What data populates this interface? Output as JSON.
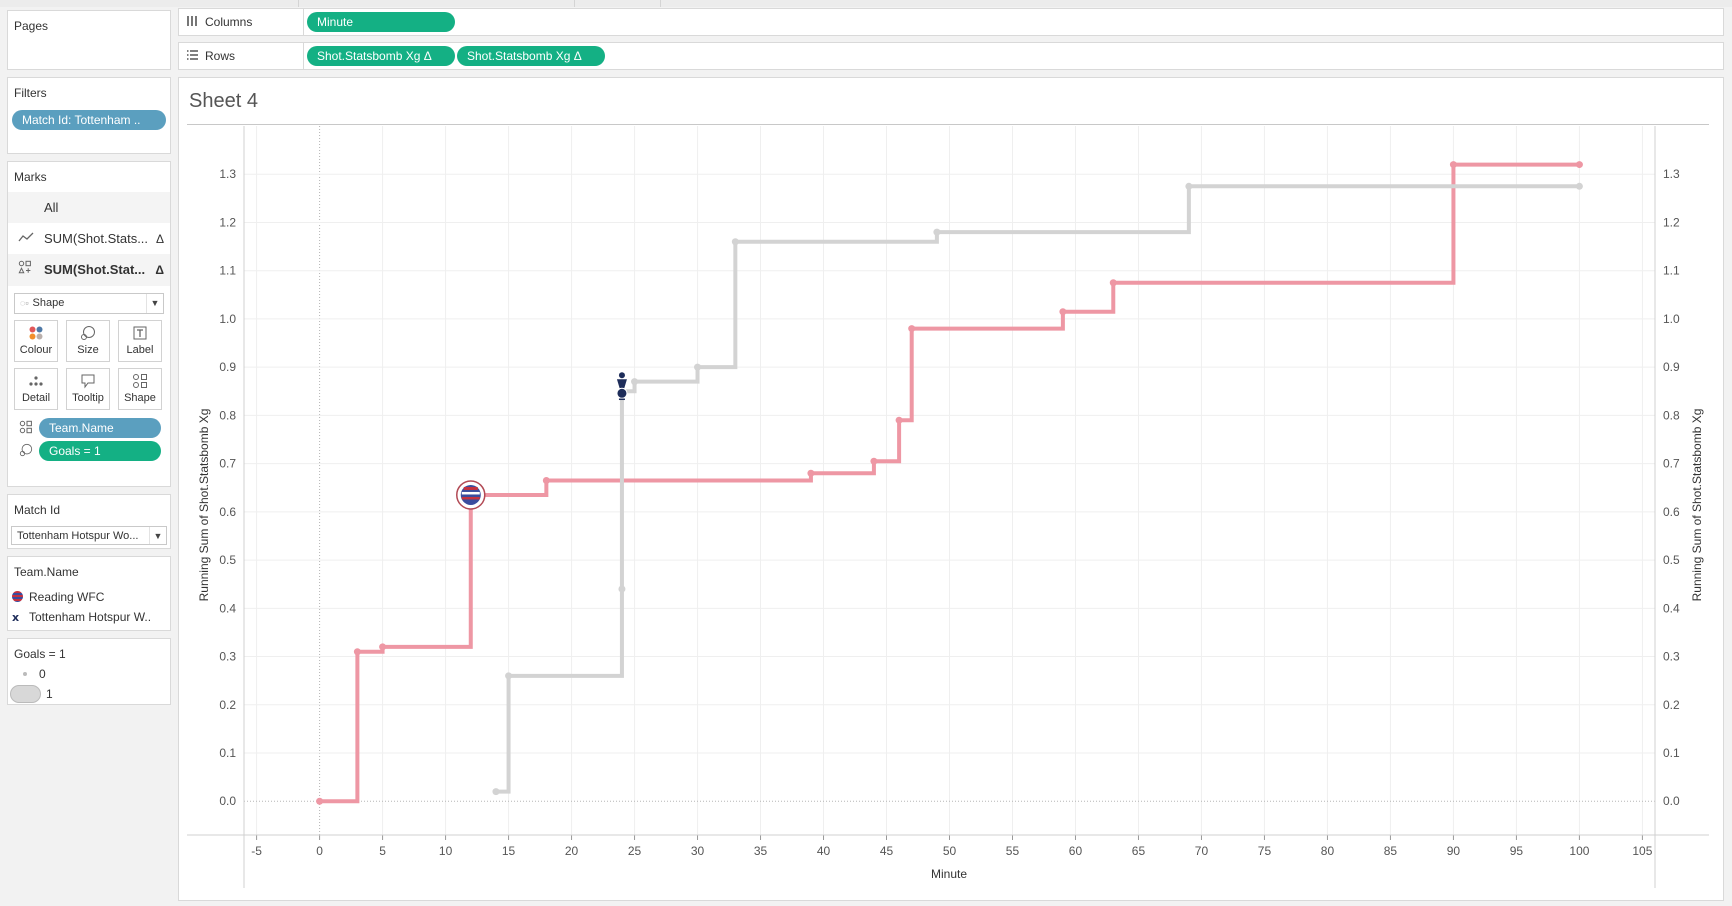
{
  "pages": {
    "title": "Pages"
  },
  "filters": {
    "title": "Filters",
    "items": [
      "Match Id: Tottenham .."
    ]
  },
  "marks": {
    "title": "Marks",
    "rows": [
      {
        "label": "All",
        "icon": "",
        "delta": ""
      },
      {
        "label": "SUM(Shot.Stats...",
        "icon": "line-mark-icon",
        "delta": "Δ"
      },
      {
        "label": "SUM(Shot.Stat...",
        "icon": "shape-mark-icon",
        "delta": "Δ"
      }
    ],
    "mark_type": "Shape",
    "buttons": [
      "Colour",
      "Size",
      "Label",
      "Detail",
      "Tooltip",
      "Shape"
    ],
    "pills": [
      "Team.Name",
      "Goals = 1"
    ]
  },
  "match_id": {
    "title": "Match Id",
    "value": "Tottenham Hotspur Wo..."
  },
  "team_legend": {
    "title": "Team.Name",
    "items": [
      "Reading WFC",
      "Tottenham Hotspur W.."
    ]
  },
  "goals_legend": {
    "title": "Goals = 1",
    "items": [
      "0",
      "1"
    ]
  },
  "shelves": {
    "columns_label": "Columns",
    "columns_pills": [
      "Minute"
    ],
    "rows_label": "Rows",
    "rows_pills": [
      "Shot.Statsbomb Xg Δ",
      "Shot.Statsbomb Xg Δ"
    ]
  },
  "sheet": {
    "title": "Sheet 4"
  },
  "colors": {
    "reading": "#ee97a4",
    "tottenham": "#d3d3d3",
    "pill_green": "#14b084",
    "pill_blue": "#5b9fbf"
  },
  "chart_data": {
    "type": "line",
    "step": true,
    "xlabel": "Minute",
    "ylabel": "Running Sum of Shot.Statsbomb Xg",
    "ylabel_right": "Running Sum of Shot.Statsbomb Xg",
    "xlim": [
      -6,
      106
    ],
    "ylim": [
      -0.07,
      1.4
    ],
    "x_ticks": [
      -5,
      0,
      5,
      10,
      15,
      20,
      25,
      30,
      35,
      40,
      45,
      50,
      55,
      60,
      65,
      70,
      75,
      80,
      85,
      90,
      95,
      100,
      105
    ],
    "y_ticks": [
      "0.0",
      "0.1",
      "0.2",
      "0.3",
      "0.4",
      "0.5",
      "0.6",
      "0.7",
      "0.8",
      "0.9",
      "1.0",
      "1.1",
      "1.2",
      "1.3"
    ],
    "grid": true,
    "series": [
      {
        "name": "Reading WFC",
        "color": "#ee97a4",
        "points": [
          [
            0,
            0.0
          ],
          [
            3,
            0.31
          ],
          [
            5,
            0.32
          ],
          [
            12,
            0.635
          ],
          [
            18,
            0.665
          ],
          [
            39,
            0.68
          ],
          [
            44,
            0.705
          ],
          [
            46,
            0.79
          ],
          [
            47,
            0.98
          ],
          [
            59,
            1.015
          ],
          [
            63,
            1.075
          ],
          [
            90,
            1.32
          ],
          [
            100,
            1.32
          ]
        ],
        "goal_minutes": [
          12
        ]
      },
      {
        "name": "Tottenham Hotspur W..",
        "color": "#d3d3d3",
        "points": [
          [
            14,
            0.02
          ],
          [
            15,
            0.26
          ],
          [
            24,
            0.44
          ],
          [
            24,
            0.85
          ],
          [
            25,
            0.87
          ],
          [
            30,
            0.9
          ],
          [
            33,
            1.16
          ],
          [
            49,
            1.18
          ],
          [
            69,
            1.275
          ],
          [
            100,
            1.275
          ]
        ],
        "goal_minutes": [
          24
        ]
      }
    ]
  }
}
